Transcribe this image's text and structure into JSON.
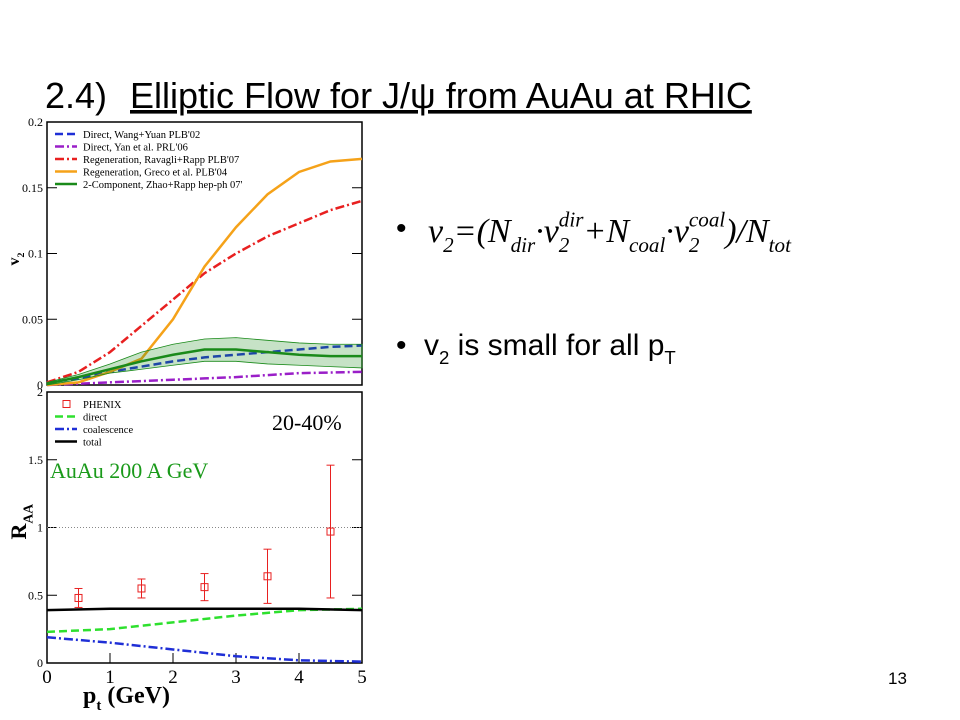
{
  "slide": {
    "title_number": "2.4)",
    "title_text": "Elliptic Flow for J/ψ from AuAu at RHIC",
    "formula": [
      "v",
      {
        "sub": "2"
      },
      "=(N",
      {
        "sub": "dir"
      },
      "·v",
      {
        "sub": "2"
      },
      {
        "sup": "dir"
      },
      "+N",
      {
        "sub": "coal"
      },
      "·v",
      {
        "sub": "2"
      },
      {
        "sup": "coal"
      },
      ")/N",
      {
        "sub": "tot"
      }
    ],
    "bullet": [
      "v",
      {
        "sub": "2"
      },
      " is small for all p",
      {
        "sub": "T"
      }
    ],
    "page_number": "13"
  },
  "chart_data": [
    {
      "type": "line",
      "ylabel": [
        "v",
        {
          "sub": "2"
        }
      ],
      "xlim": [
        0,
        5
      ],
      "ylim": [
        0,
        0.2
      ],
      "yticks": [
        0,
        0.05,
        0.1,
        0.15,
        0.2
      ],
      "x": [
        0,
        0.5,
        1,
        1.5,
        2,
        2.5,
        3,
        3.5,
        4,
        4.5,
        5
      ],
      "series": [
        {
          "name": "Direct, Wang+Yuan PLB'02",
          "color": "#1f2fd6",
          "style": "dashed",
          "values": [
            0.002,
            0.005,
            0.01,
            0.014,
            0.018,
            0.021,
            0.023,
            0.025,
            0.027,
            0.029,
            0.03
          ]
        },
        {
          "name": "Direct, Yan et al. PRL'06",
          "color": "#9a1fc8",
          "style": "dashdot",
          "values": [
            0,
            0.001,
            0.002,
            0.003,
            0.004,
            0.005,
            0.006,
            0.0075,
            0.009,
            0.0095,
            0.01
          ]
        },
        {
          "name": "Regeneration, Ravagli+Rapp PLB'07",
          "color": "#e82020",
          "style": "dashdot",
          "values": [
            0.002,
            0.01,
            0.025,
            0.045,
            0.065,
            0.085,
            0.1,
            0.113,
            0.123,
            0.133,
            0.14
          ]
        },
        {
          "name": "Regeneration, Greco et al. PLB'04",
          "color": "#f5a219",
          "style": "solid",
          "values": [
            0,
            0.002,
            0.01,
            0.02,
            0.05,
            0.09,
            0.12,
            0.145,
            0.162,
            0.17,
            0.172
          ]
        },
        {
          "name": "2-Component, Zhao+Rapp hep-ph 07'",
          "color": "#1a8a1a",
          "style": "solid",
          "values": [
            0.001,
            0.006,
            0.012,
            0.018,
            0.023,
            0.027,
            0.027,
            0.025,
            0.023,
            0.022,
            0.022
          ],
          "band": {
            "upper": [
              0.002,
              0.008,
              0.016,
              0.025,
              0.031,
              0.035,
              0.036,
              0.034,
              0.032,
              0.031,
              0.031
            ],
            "lower": [
              0,
              0.004,
              0.009,
              0.012,
              0.015,
              0.018,
              0.018,
              0.016,
              0.015,
              0.014,
              0.013
            ]
          }
        }
      ]
    },
    {
      "type": "line",
      "ylabel": [
        "R",
        {
          "sub": "AA"
        }
      ],
      "xlabel": [
        "p",
        {
          "sub": "t"
        },
        " (GeV)"
      ],
      "xlim": [
        0,
        5
      ],
      "ylim": [
        0,
        2
      ],
      "yticks": [
        0,
        0.5,
        1,
        1.5,
        2
      ],
      "xticks": [
        0,
        1,
        2,
        3,
        4,
        5
      ],
      "reference_line": 1,
      "annotations": [
        "20-40%",
        "AuAu 200 A GeV"
      ],
      "x": [
        0,
        1,
        2,
        3,
        4,
        5
      ],
      "series": [
        {
          "name": "PHENIX",
          "color": "#e82020",
          "style": "markers",
          "x": [
            0.5,
            1.5,
            2.5,
            3.5,
            4.5
          ],
          "values": [
            0.48,
            0.55,
            0.56,
            0.64,
            0.97
          ],
          "errors": [
            0.07,
            0.07,
            0.1,
            0.2,
            0.49
          ]
        },
        {
          "name": "direct",
          "color": "#2ee02e",
          "style": "dashed",
          "values": [
            0.23,
            0.25,
            0.3,
            0.35,
            0.39,
            0.4
          ]
        },
        {
          "name": "coalescence",
          "color": "#1f2fd6",
          "style": "dashdot",
          "values": [
            0.19,
            0.15,
            0.1,
            0.05,
            0.02,
            0.01
          ]
        },
        {
          "name": "total",
          "color": "#000000",
          "style": "solid",
          "values": [
            0.39,
            0.4,
            0.4,
            0.4,
            0.4,
            0.39
          ]
        }
      ]
    }
  ]
}
